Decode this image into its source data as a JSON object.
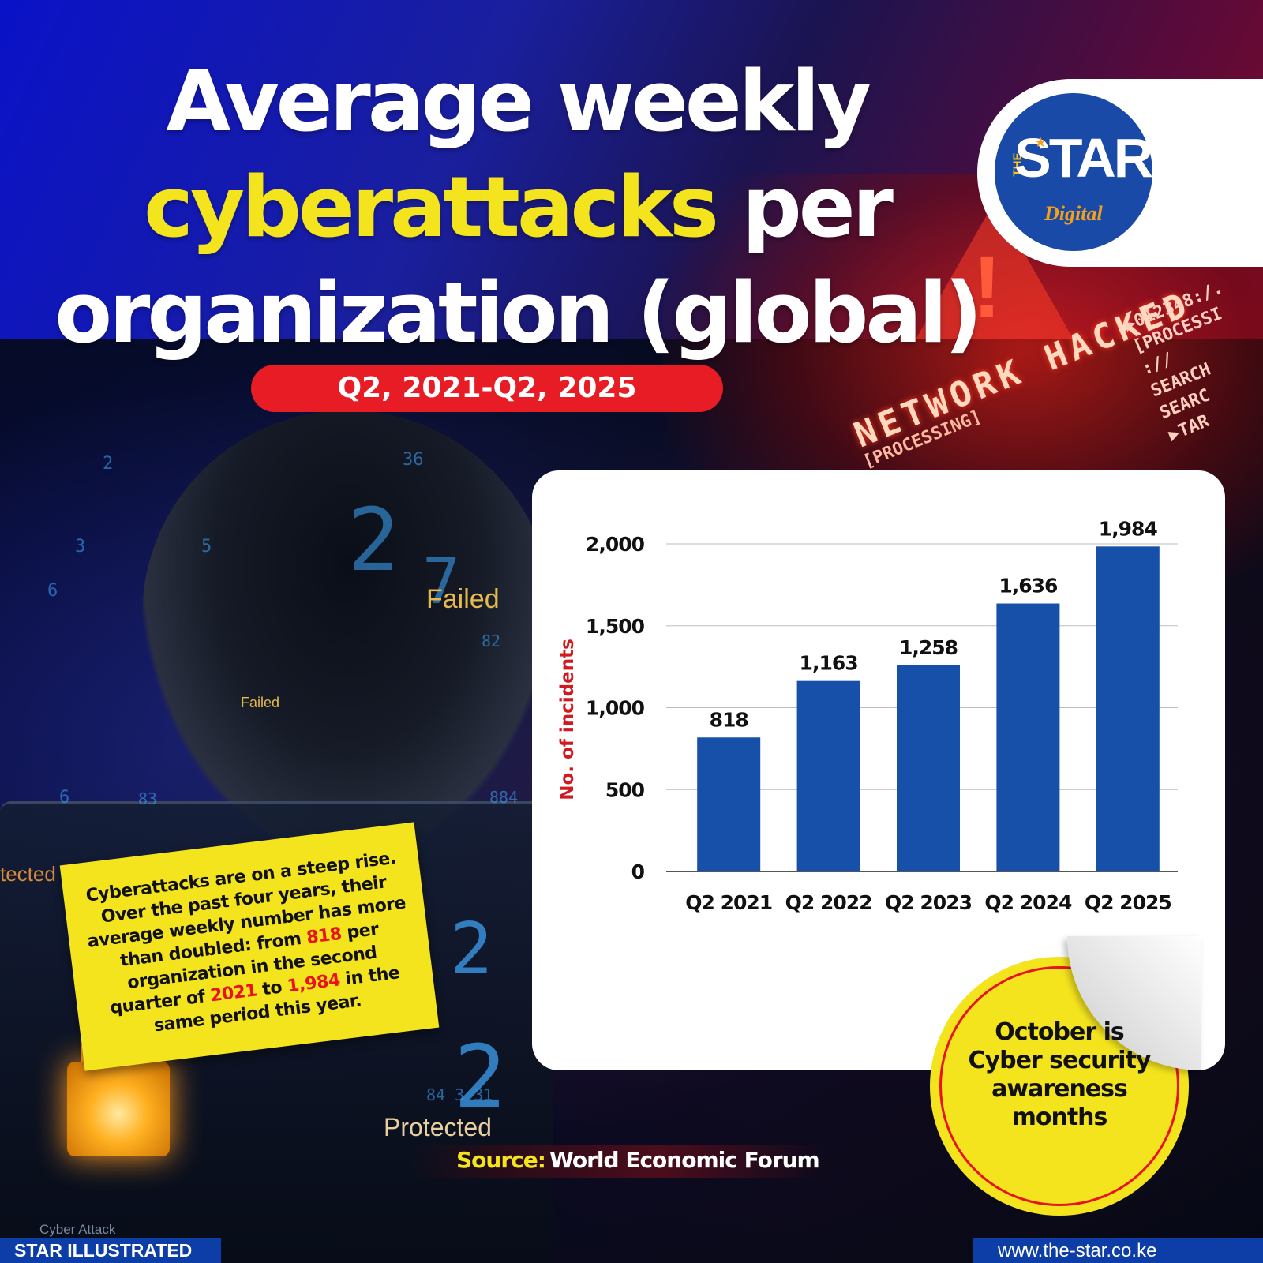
{
  "header": {
    "title_line1": "Average weekly",
    "title_highlight": "cyberattacks",
    "title_line2_rest": "per",
    "title_line3": "organization (global)",
    "period": "Q2, 2021-Q2, 2025"
  },
  "logo": {
    "the": "THE",
    "star": "STAR",
    "digital": "Digital"
  },
  "background_text": {
    "network_hacked": "NETWORK HACKED",
    "processing": "[PROCESSING]",
    "side_lines": [
      "▶012348:/.",
      "[PROCESSI",
      "://",
      "SEARCH",
      "SEARC",
      "▶TAR"
    ],
    "failed_big": "Failed",
    "failed_small": "Failed",
    "protected_left": "tected",
    "protected_bottom": "Protected",
    "cyber_attack": "Cyber Attack"
  },
  "chart_data": {
    "type": "bar",
    "categories": [
      "Q2 2021",
      "Q2 2022",
      "Q2 2023",
      "Q2 2024",
      "Q2 2025"
    ],
    "values": [
      818,
      1163,
      1258,
      1636,
      1984
    ],
    "value_labels": [
      "818",
      "1,163",
      "1,258",
      "1,636",
      "1,984"
    ],
    "ylabel": "No. of incidents",
    "ylim": [
      0,
      2000
    ],
    "yticks": [
      0,
      500,
      1000,
      1500,
      2000
    ],
    "ytick_labels": [
      "0",
      "500",
      "1,000",
      "1,500",
      "2,000"
    ],
    "grid": true,
    "bar_color": "#1650a8"
  },
  "note": {
    "part1": "Cyberattacks are on a steep rise. Over the past four years, their average weekly number has more than doubled: from ",
    "v1": "818",
    "part2": " per organization in the second quarter of ",
    "v2": "2021",
    "part3": " to ",
    "v3": "1,984",
    "part4": " in the same period this year."
  },
  "sticker": {
    "text": "October is Cyber security awareness months"
  },
  "source": {
    "label": "Source:",
    "value": "World Economic Forum"
  },
  "footer": {
    "left": "STAR ILLUSTRATED",
    "right": "www.the-star.co.ke"
  },
  "colors": {
    "accent_yellow": "#f4e41e",
    "accent_red": "#e8131d",
    "brand_blue": "#1a4aa8"
  }
}
